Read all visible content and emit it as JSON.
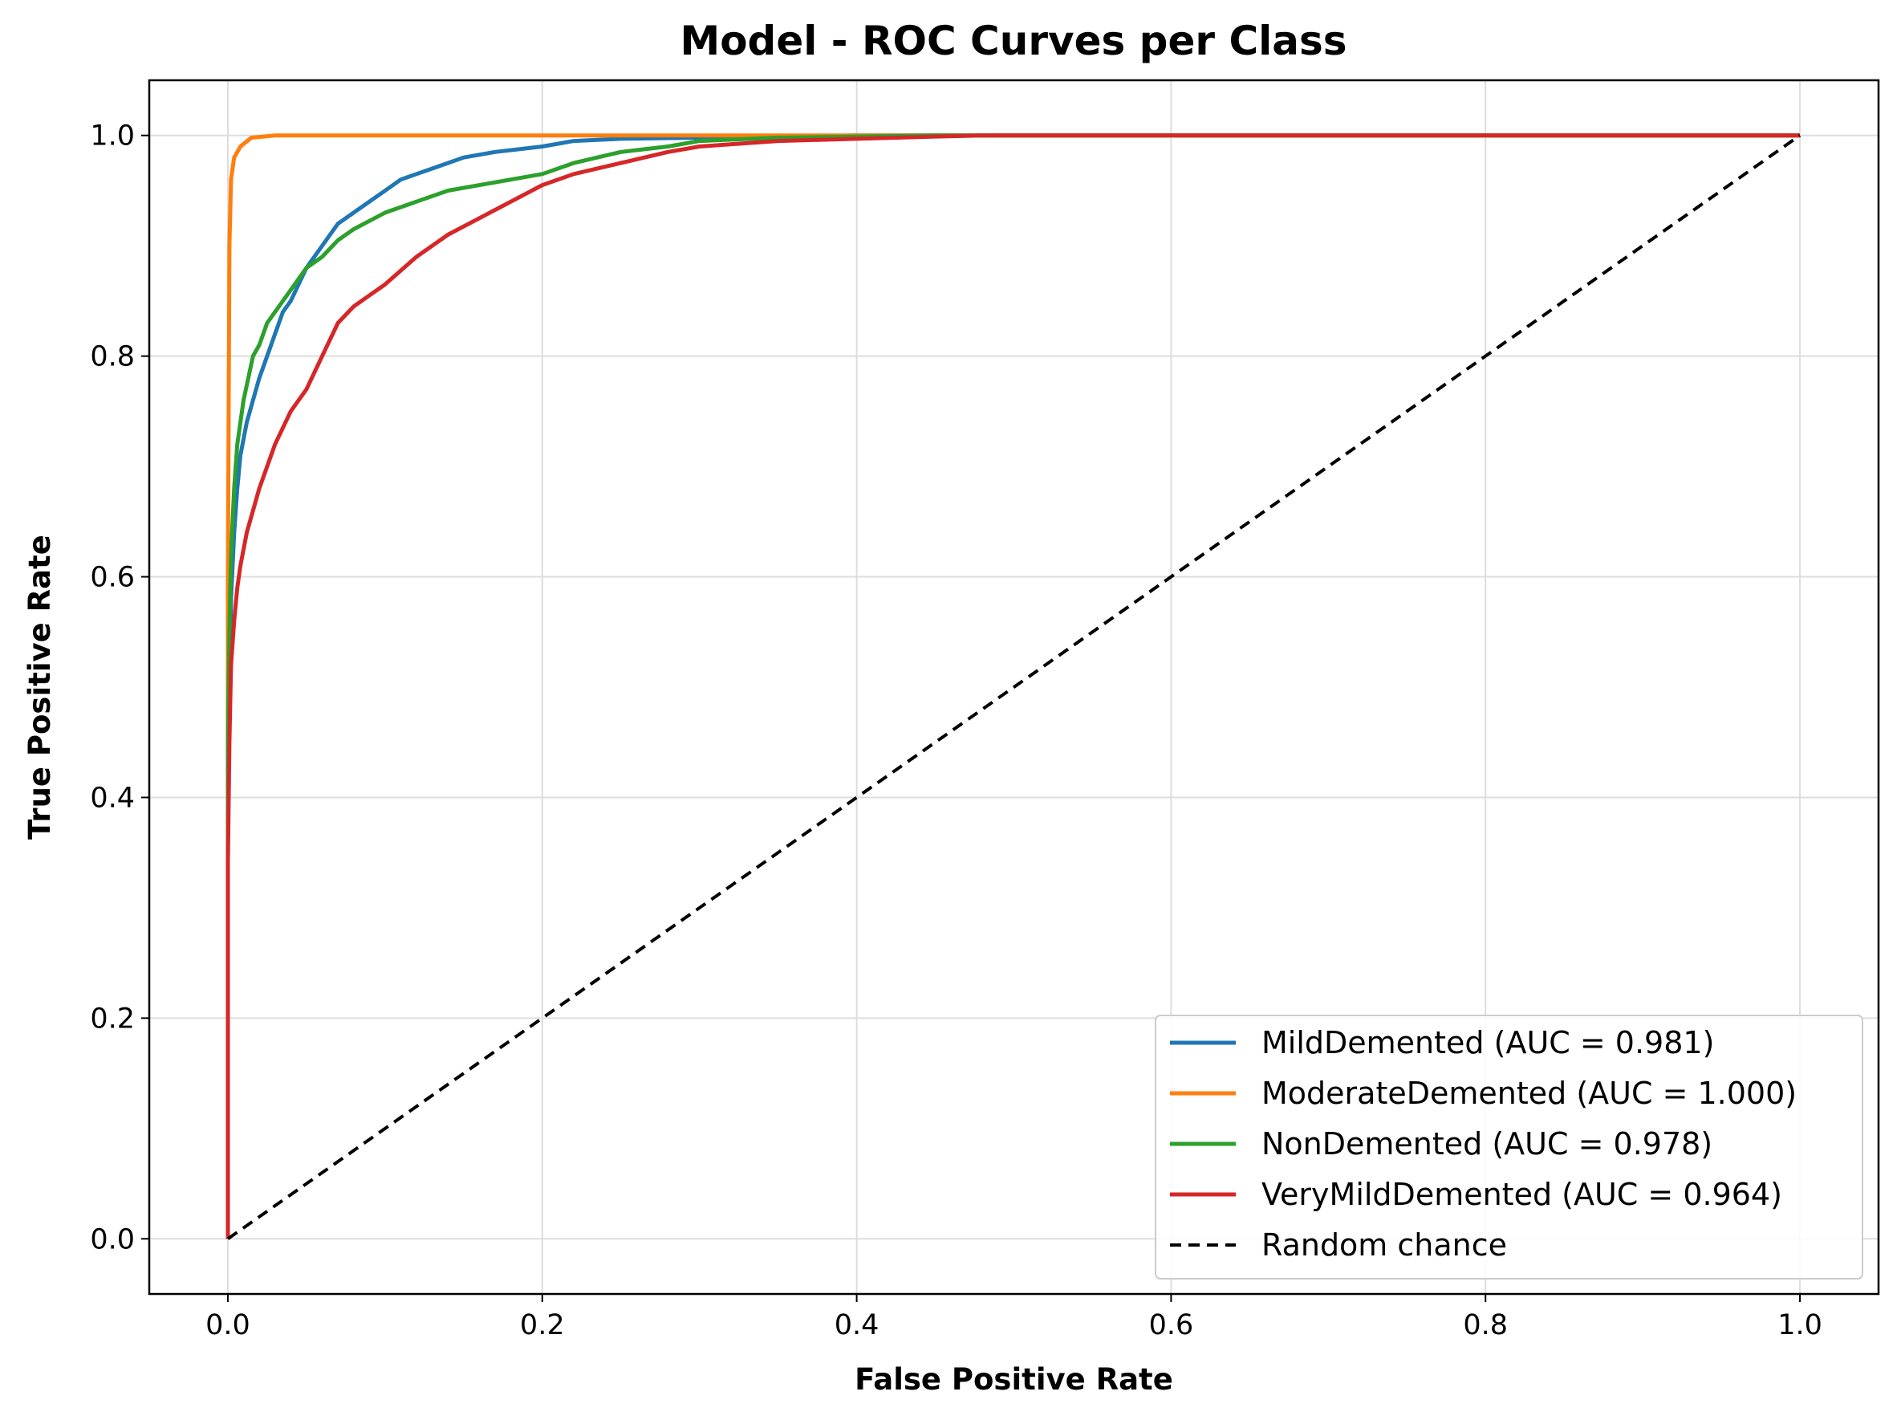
{
  "chart_data": {
    "type": "line",
    "title": "Model - ROC Curves per Class",
    "xlabel": "False Positive Rate",
    "ylabel": "True Positive Rate",
    "xlim": [
      -0.05,
      1.05
    ],
    "ylim": [
      -0.05,
      1.05
    ],
    "xticks": [
      "0.0",
      "0.2",
      "0.4",
      "0.6",
      "0.8",
      "1.0"
    ],
    "yticks": [
      "0.0",
      "0.2",
      "0.4",
      "0.6",
      "0.8",
      "1.0"
    ],
    "grid": true,
    "legend_position": "lower right",
    "series": [
      {
        "name": "MildDemented (AUC = 0.981)",
        "color": "#1f77b4",
        "x": [
          0,
          0,
          0.001,
          0.002,
          0.004,
          0.006,
          0.008,
          0.012,
          0.016,
          0.02,
          0.025,
          0.03,
          0.035,
          0.04,
          0.05,
          0.06,
          0.07,
          0.08,
          0.09,
          0.1,
          0.11,
          0.12,
          0.13,
          0.14,
          0.15,
          0.17,
          0.2,
          0.22,
          0.25,
          0.3,
          0.35,
          0.4,
          1.0
        ],
        "y": [
          0,
          0.36,
          0.5,
          0.58,
          0.64,
          0.68,
          0.71,
          0.74,
          0.76,
          0.78,
          0.8,
          0.82,
          0.84,
          0.85,
          0.88,
          0.9,
          0.92,
          0.93,
          0.94,
          0.95,
          0.96,
          0.965,
          0.97,
          0.975,
          0.98,
          0.985,
          0.99,
          0.995,
          0.997,
          0.998,
          0.999,
          1.0,
          1.0
        ]
      },
      {
        "name": "ModerateDemented (AUC = 1.000)",
        "color": "#ff7f0e",
        "x": [
          0,
          0,
          0.001,
          0.002,
          0.004,
          0.008,
          0.015,
          0.03,
          1.0
        ],
        "y": [
          0,
          0.6,
          0.9,
          0.96,
          0.98,
          0.99,
          0.998,
          1.0,
          1.0
        ]
      },
      {
        "name": "NonDemented (AUC = 0.978)",
        "color": "#2ca02c",
        "x": [
          0,
          0,
          0.001,
          0.002,
          0.004,
          0.006,
          0.008,
          0.01,
          0.013,
          0.016,
          0.02,
          0.025,
          0.03,
          0.04,
          0.05,
          0.06,
          0.07,
          0.08,
          0.1,
          0.12,
          0.14,
          0.16,
          0.18,
          0.2,
          0.22,
          0.25,
          0.28,
          0.3,
          0.35,
          0.4,
          0.45,
          1.0
        ],
        "y": [
          0,
          0.45,
          0.55,
          0.62,
          0.68,
          0.72,
          0.74,
          0.76,
          0.78,
          0.8,
          0.81,
          0.83,
          0.84,
          0.86,
          0.88,
          0.89,
          0.905,
          0.915,
          0.93,
          0.94,
          0.95,
          0.955,
          0.96,
          0.965,
          0.975,
          0.985,
          0.99,
          0.995,
          0.998,
          0.999,
          1.0,
          1.0
        ]
      },
      {
        "name": "VeryMildDemented (AUC = 0.964)",
        "color": "#d62728",
        "x": [
          0,
          0,
          0.001,
          0.002,
          0.004,
          0.006,
          0.008,
          0.012,
          0.016,
          0.02,
          0.025,
          0.03,
          0.04,
          0.05,
          0.06,
          0.07,
          0.08,
          0.09,
          0.1,
          0.12,
          0.14,
          0.16,
          0.18,
          0.2,
          0.22,
          0.25,
          0.28,
          0.3,
          0.35,
          0.4,
          0.45,
          0.48,
          1.0
        ],
        "y": [
          0,
          0.34,
          0.45,
          0.52,
          0.56,
          0.59,
          0.61,
          0.64,
          0.66,
          0.68,
          0.7,
          0.72,
          0.75,
          0.77,
          0.8,
          0.83,
          0.845,
          0.855,
          0.865,
          0.89,
          0.91,
          0.925,
          0.94,
          0.955,
          0.965,
          0.975,
          0.985,
          0.99,
          0.995,
          0.997,
          0.999,
          1.0,
          1.0
        ]
      },
      {
        "name": "Random chance",
        "color": "#000000",
        "dashed": true,
        "x": [
          0,
          1
        ],
        "y": [
          0,
          1
        ]
      }
    ]
  }
}
